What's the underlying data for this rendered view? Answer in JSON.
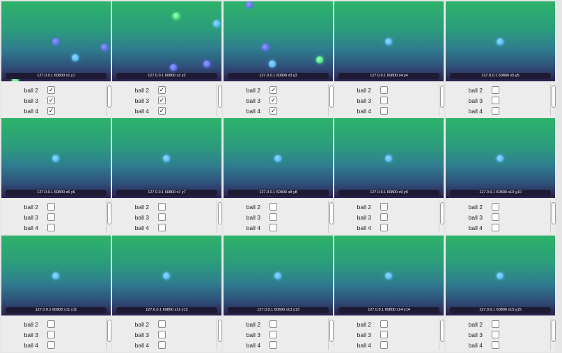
{
  "panels": [
    {
      "label": "127.0.0.1 60800 x1 y1",
      "options": [
        {
          "label": "ball 2",
          "checked": true
        },
        {
          "label": "ball 3",
          "checked": true
        },
        {
          "label": "ball 4",
          "checked": true
        }
      ]
    },
    {
      "label": "127.0.0.1 60800 x2 y2",
      "options": [
        {
          "label": "ball 2",
          "checked": true
        },
        {
          "label": "ball 3",
          "checked": true
        },
        {
          "label": "ball 4",
          "checked": true
        }
      ]
    },
    {
      "label": "127.0.0.1 60800 x3 y3",
      "options": [
        {
          "label": "ball 2",
          "checked": true
        },
        {
          "label": "ball 3",
          "checked": true
        },
        {
          "label": "ball 4",
          "checked": true
        }
      ]
    },
    {
      "label": "127.0.0.1 60800 x4 y4",
      "options": [
        {
          "label": "ball 2",
          "checked": false
        },
        {
          "label": "ball 3",
          "checked": false
        },
        {
          "label": "ball 4",
          "checked": false
        }
      ]
    },
    {
      "label": "127.0.0.1 60800 x5 y5",
      "options": [
        {
          "label": "ball 2",
          "checked": false
        },
        {
          "label": "ball 3",
          "checked": false
        },
        {
          "label": "ball 4",
          "checked": false
        }
      ]
    },
    {
      "label": "127.0.0.1 60800 x6 y6",
      "options": [
        {
          "label": "ball 2",
          "checked": false
        },
        {
          "label": "ball 3",
          "checked": false
        },
        {
          "label": "ball 4",
          "checked": false
        }
      ]
    },
    {
      "label": "127.0.0.1 60800 x7 y7",
      "options": [
        {
          "label": "ball 2",
          "checked": false
        },
        {
          "label": "ball 3",
          "checked": false
        },
        {
          "label": "ball 4",
          "checked": false
        }
      ]
    },
    {
      "label": "127.0.0.1 60800 x8 y8",
      "options": [
        {
          "label": "ball 2",
          "checked": false
        },
        {
          "label": "ball 3",
          "checked": false
        },
        {
          "label": "ball 4",
          "checked": false
        }
      ]
    },
    {
      "label": "127.0.0.1 60800 x9 y9",
      "options": [
        {
          "label": "ball 2",
          "checked": false
        },
        {
          "label": "ball 3",
          "checked": false
        },
        {
          "label": "ball 4",
          "checked": false
        }
      ]
    },
    {
      "label": "127.0.0.1 60800 x10 y10",
      "options": [
        {
          "label": "ball 2",
          "checked": false
        },
        {
          "label": "ball 3",
          "checked": false
        },
        {
          "label": "ball 4",
          "checked": false
        }
      ]
    },
    {
      "label": "127.0.0.1 60800 x11 y11",
      "options": [
        {
          "label": "ball 2",
          "checked": false
        },
        {
          "label": "ball 3",
          "checked": false
        },
        {
          "label": "ball 4",
          "checked": false
        }
      ]
    },
    {
      "label": "127.0.0.1 60800 x12 y12",
      "options": [
        {
          "label": "ball 2",
          "checked": false
        },
        {
          "label": "ball 3",
          "checked": false
        },
        {
          "label": "ball 4",
          "checked": false
        }
      ]
    },
    {
      "label": "127.0.0.1 60800 x13 y13",
      "options": [
        {
          "label": "ball 2",
          "checked": false
        },
        {
          "label": "ball 3",
          "checked": false
        },
        {
          "label": "ball 4",
          "checked": false
        }
      ]
    },
    {
      "label": "127.0.0.1 60800 x14 y14",
      "options": [
        {
          "label": "ball 2",
          "checked": false
        },
        {
          "label": "ball 3",
          "checked": false
        },
        {
          "label": "ball 4",
          "checked": false
        }
      ]
    },
    {
      "label": "127.0.0.1 60800 x15 y15",
      "options": [
        {
          "label": "ball 2",
          "checked": false
        },
        {
          "label": "ball 3",
          "checked": false
        },
        {
          "label": "ball 4",
          "checked": false
        }
      ]
    }
  ]
}
